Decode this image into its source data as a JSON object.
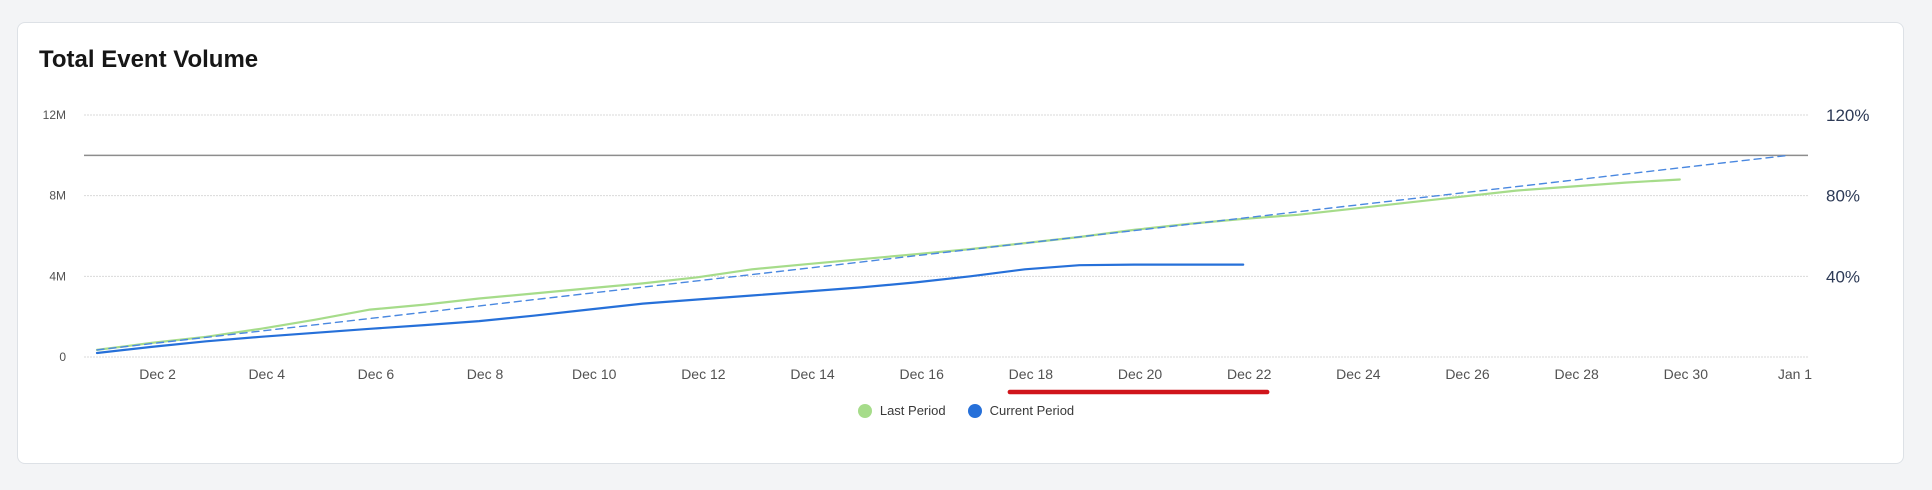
{
  "card": {
    "title": "Total Event Volume"
  },
  "colors": {
    "last_period": "#a6dc8a",
    "current_period": "#2670d9",
    "projection": "#4a88e0",
    "reference_line": "#8d8d8d",
    "grid": "#d9d9d9",
    "highlight": "#d0151b"
  },
  "legend": [
    {
      "label": "Last Period",
      "color": "#a6dc8a"
    },
    {
      "label": "Current Period",
      "color": "#2670d9"
    }
  ],
  "chart_data": {
    "type": "line",
    "x_ticks": [
      "Dec 2",
      "Dec 4",
      "Dec 6",
      "Dec 8",
      "Dec 10",
      "Dec 12",
      "Dec 14",
      "Dec 16",
      "Dec 18",
      "Dec 20",
      "Dec 22",
      "Dec 24",
      "Dec 26",
      "Dec 28",
      "Dec 30",
      "Jan 1"
    ],
    "y_left_ticks": [
      "12M",
      "8M",
      "4M",
      "0"
    ],
    "y_left_range": [
      0,
      12000000
    ],
    "y_right_ticks": [
      "120%",
      "80%",
      "40%"
    ],
    "y_right_range": [
      0,
      120
    ],
    "x_range": [
      "Dec 1",
      "Jan 1"
    ],
    "grid": true,
    "legend_position": "bottom-center",
    "reference_line": {
      "value_percent": 100
    },
    "highlight_range": [
      "Dec 18",
      "Dec 22"
    ],
    "series": [
      {
        "name": "Last Period",
        "style": "solid",
        "x": [
          "Dec 1",
          "Dec 2",
          "Dec 3",
          "Dec 4",
          "Dec 5",
          "Dec 6",
          "Dec 7",
          "Dec 8",
          "Dec 9",
          "Dec 10",
          "Dec 11",
          "Dec 12",
          "Dec 13",
          "Dec 14",
          "Dec 15",
          "Dec 16",
          "Dec 17",
          "Dec 18",
          "Dec 19",
          "Dec 20",
          "Dec 21",
          "Dec 22",
          "Dec 23",
          "Dec 24",
          "Dec 25",
          "Dec 26",
          "Dec 27",
          "Dec 28",
          "Dec 29",
          "Dec 30"
        ],
        "values": [
          350000,
          700000,
          1000000,
          1400000,
          1850000,
          2350000,
          2600000,
          2900000,
          3150000,
          3400000,
          3650000,
          3950000,
          4350000,
          4600000,
          4850000,
          5100000,
          5350000,
          5650000,
          5950000,
          6300000,
          6600000,
          6850000,
          7050000,
          7350000,
          7650000,
          7950000,
          8250000,
          8450000,
          8650000,
          8800000
        ]
      },
      {
        "name": "Current Period",
        "style": "solid",
        "x": [
          "Dec 1",
          "Dec 2",
          "Dec 3",
          "Dec 4",
          "Dec 5",
          "Dec 6",
          "Dec 7",
          "Dec 8",
          "Dec 9",
          "Dec 10",
          "Dec 11",
          "Dec 12",
          "Dec 13",
          "Dec 14",
          "Dec 15",
          "Dec 16",
          "Dec 17",
          "Dec 18",
          "Dec 19",
          "Dec 20",
          "Dec 21",
          "Dec 22"
        ],
        "values": [
          200000,
          500000,
          780000,
          1000000,
          1200000,
          1400000,
          1580000,
          1780000,
          2050000,
          2350000,
          2650000,
          2850000,
          3050000,
          3250000,
          3450000,
          3700000,
          4000000,
          4350000,
          4550000,
          4580000,
          4580000,
          4580000
        ]
      },
      {
        "style": "dashed",
        "x": [
          "Dec 1",
          "Jan 1"
        ],
        "values": [
          350000,
          10000000
        ]
      }
    ]
  }
}
